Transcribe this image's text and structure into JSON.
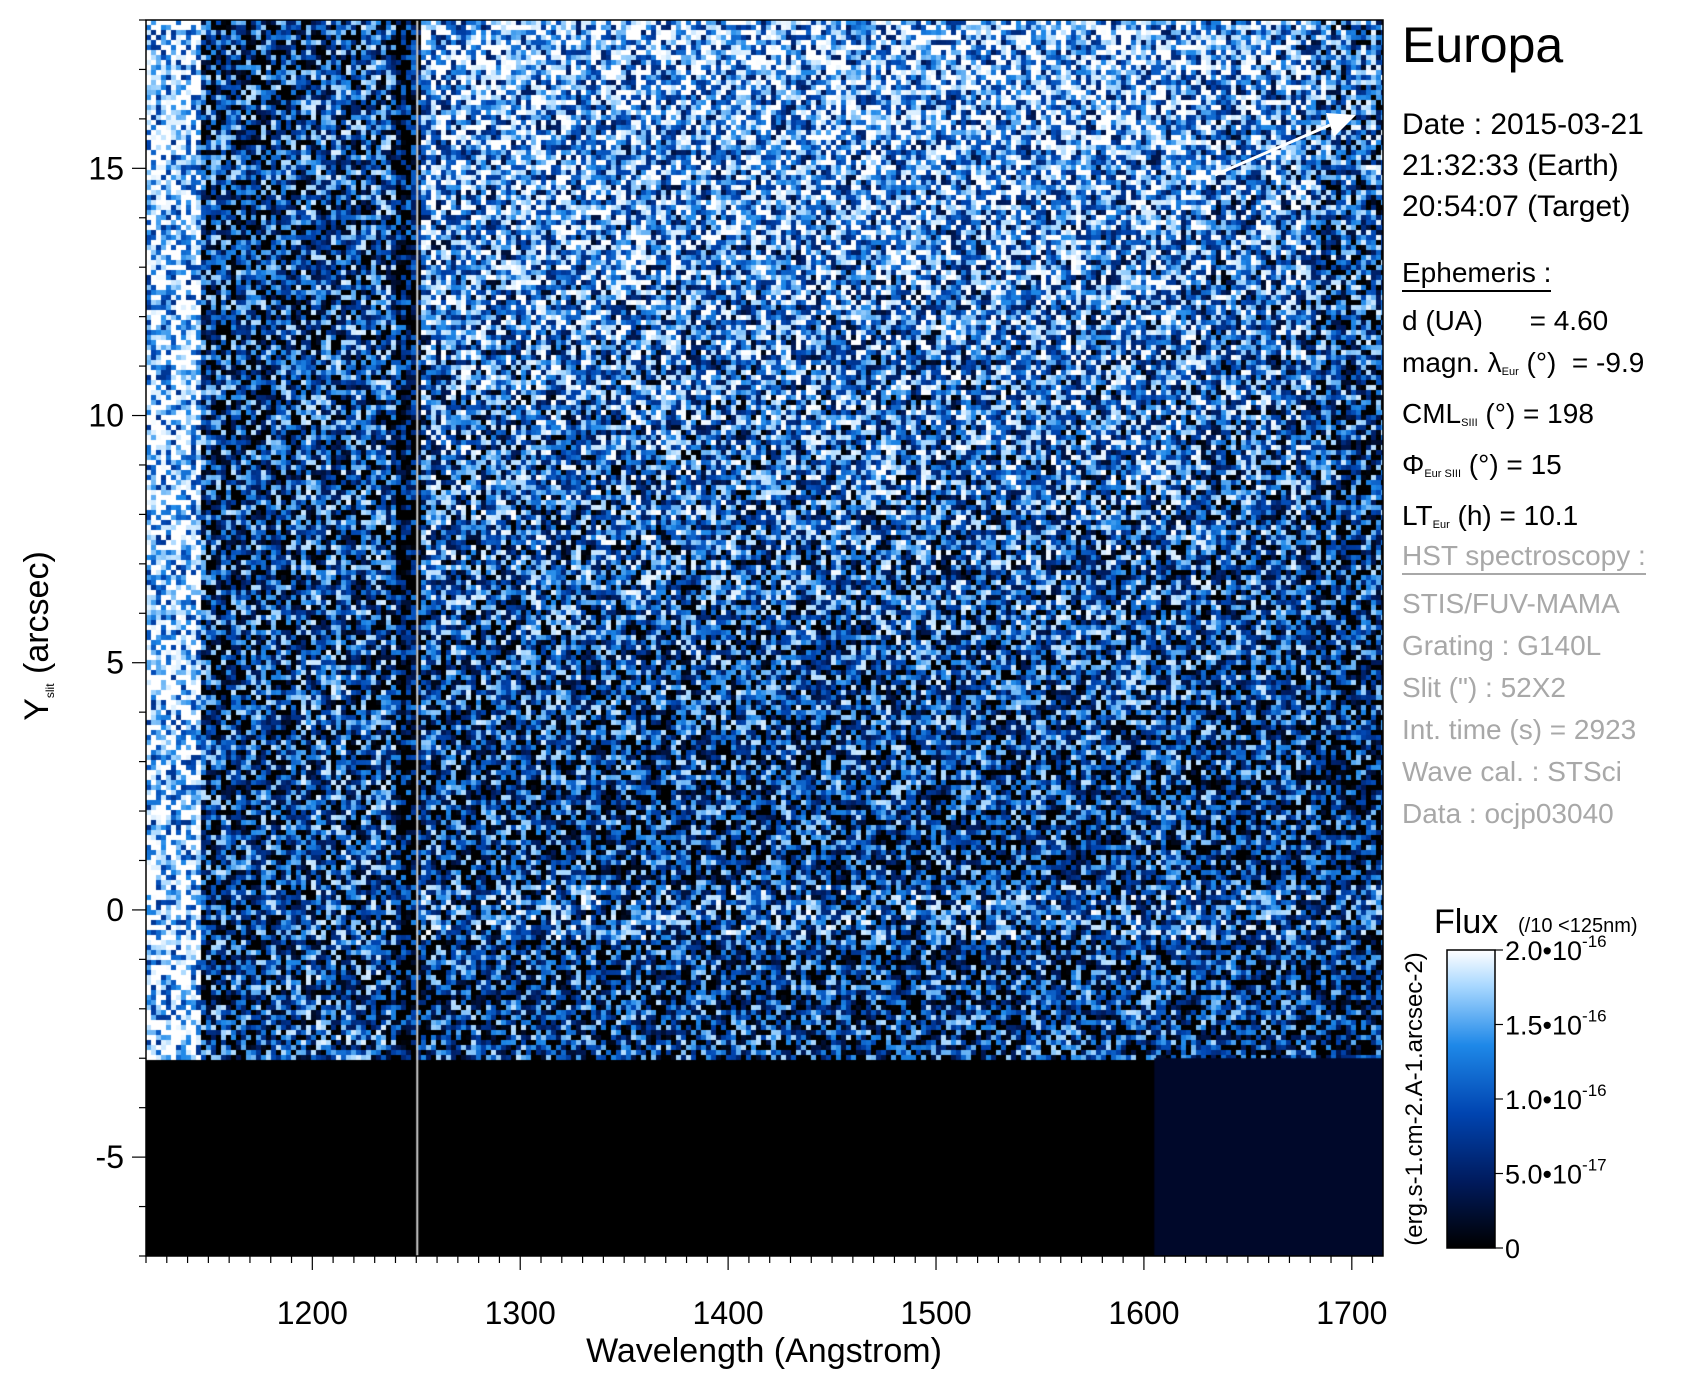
{
  "chart_data": {
    "type": "heatmap",
    "title": "Europa",
    "xlabel": "Wavelength (Angstrom)",
    "ylabel": {
      "main": "Y",
      "sub": "slit",
      "rest": " (arcsec)"
    },
    "xlim": [
      1120,
      1715
    ],
    "ylim": [
      -7,
      18
    ],
    "xticks": [
      "1200",
      "1300",
      "1400",
      "1500",
      "1600",
      "1700"
    ],
    "xtick_values": [
      1200,
      1300,
      1400,
      1500,
      1600,
      1700
    ],
    "yticks": [
      "-5",
      "0",
      "5",
      "10",
      "15"
    ],
    "ytick_values": [
      -5,
      0,
      5,
      10,
      15
    ],
    "grid": false,
    "colormap": [
      "#000000",
      "#001a5c",
      "#0044b0",
      "#1e88e8",
      "#a9d8ff",
      "#ffffff"
    ],
    "colorbar": {
      "title": "Flux",
      "note": "(/10 <125nm)",
      "unit": "(erg.s-1.cm-2.A-1.arcsec-2)",
      "range": [
        0,
        2e-16
      ],
      "tick_values": [
        0,
        5e-17,
        1e-16,
        1.5e-16,
        2e-16
      ],
      "ticks": [
        {
          "label": "0"
        },
        {
          "label": "5.0•10",
          "exp": "-17"
        },
        {
          "label": "1.0•10",
          "exp": "-16"
        },
        {
          "label": "1.5•10",
          "exp": "-16"
        },
        {
          "label": "2.0•10",
          "exp": "-16"
        }
      ]
    }
  },
  "info": {
    "target": "Europa",
    "date": [
      "Date : 2015-03-21",
      "21:32:33 (Earth)",
      "20:54:07 (Target)"
    ],
    "ephemeris_title": "Ephemeris :",
    "ephemeris": [
      {
        "main": "d (UA)",
        "sub": "",
        "rest": "      = 4.60"
      },
      {
        "main": "magn. λ",
        "sub": "Eur",
        "rest": " (°)  = -9.9"
      },
      {
        "main": "CML",
        "sub": "SIII",
        "rest": " (°) = 198"
      },
      {
        "main": "Φ",
        "sub": "Eur SIII",
        "rest": " (°) = 15"
      },
      {
        "main": "LT",
        "sub": "Eur",
        "rest": " (h) = 10.1"
      }
    ],
    "hst_title": "HST spectroscopy :",
    "hst": [
      "STIS/FUV-MAMA",
      "Grating : G140L",
      "Slit (\") : 52X2",
      "Int. time (s) = 2923",
      "Wave cal. : STSci",
      "Data : ocjp03040"
    ],
    "colors": {
      "hst_text": "#a8a8a8"
    }
  }
}
